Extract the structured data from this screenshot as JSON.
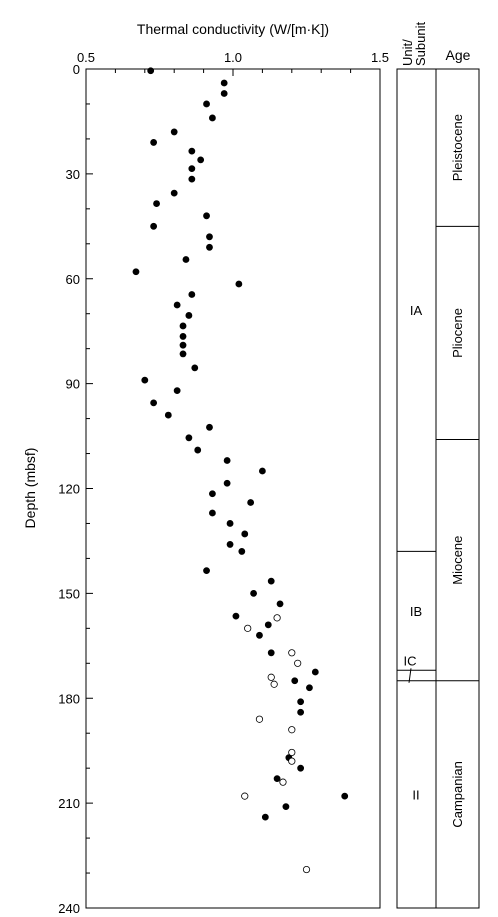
{
  "chart_data": {
    "type": "scatter",
    "xlabel": "Thermal conductivity (W/[m·K])",
    "ylabel": "Depth (mbsf)",
    "xlim": [
      0.5,
      1.5
    ],
    "ylim": [
      0,
      240
    ],
    "y_inverted": true,
    "x_ticks": [
      "0.5",
      "1.0",
      "1.5"
    ],
    "y_ticks": [
      "0",
      "30",
      "60",
      "90",
      "120",
      "150",
      "180",
      "210",
      "240"
    ],
    "grid": false,
    "legend": "none",
    "series": [
      {
        "marker": "filled-circle",
        "points": [
          [
            0.72,
            0.5
          ],
          [
            0.97,
            4
          ],
          [
            0.97,
            7
          ],
          [
            0.91,
            10
          ],
          [
            0.93,
            14
          ],
          [
            0.8,
            18
          ],
          [
            0.73,
            21
          ],
          [
            0.86,
            23.5
          ],
          [
            0.89,
            26
          ],
          [
            0.86,
            28.5
          ],
          [
            0.86,
            31.5
          ],
          [
            0.8,
            35.5
          ],
          [
            0.74,
            38.5
          ],
          [
            0.91,
            42
          ],
          [
            0.92,
            48
          ],
          [
            0.73,
            45
          ],
          [
            0.92,
            51
          ],
          [
            0.84,
            54.5
          ],
          [
            0.67,
            58
          ],
          [
            1.02,
            61.5
          ],
          [
            0.86,
            64.5
          ],
          [
            0.81,
            67.5
          ],
          [
            0.85,
            70.5
          ],
          [
            0.83,
            73.5
          ],
          [
            0.83,
            76.5
          ],
          [
            0.83,
            79
          ],
          [
            0.83,
            81.5
          ],
          [
            0.87,
            85.5
          ],
          [
            0.7,
            89
          ],
          [
            0.81,
            92
          ],
          [
            0.73,
            95.5
          ],
          [
            0.78,
            99
          ],
          [
            0.92,
            102.5
          ],
          [
            0.85,
            105.5
          ],
          [
            0.88,
            109
          ],
          [
            0.98,
            112
          ],
          [
            1.1,
            115
          ],
          [
            0.98,
            118.5
          ],
          [
            0.93,
            121.5
          ],
          [
            1.06,
            124
          ],
          [
            0.93,
            127
          ],
          [
            0.99,
            130
          ],
          [
            1.04,
            133
          ],
          [
            0.99,
            136
          ],
          [
            1.03,
            138
          ],
          [
            0.91,
            143.5
          ],
          [
            1.13,
            146.5
          ],
          [
            1.07,
            150
          ],
          [
            1.16,
            153
          ],
          [
            1.01,
            156.5
          ],
          [
            1.12,
            159
          ],
          [
            1.09,
            162
          ],
          [
            1.13,
            167
          ],
          [
            1.28,
            172.5
          ],
          [
            1.21,
            175
          ],
          [
            1.26,
            177
          ],
          [
            1.23,
            181
          ],
          [
            1.23,
            184
          ],
          [
            1.19,
            197
          ],
          [
            1.23,
            200
          ],
          [
            1.15,
            203
          ],
          [
            1.38,
            208
          ],
          [
            1.18,
            211
          ],
          [
            1.11,
            214
          ]
        ]
      },
      {
        "marker": "open-circle",
        "points": [
          [
            1.15,
            157
          ],
          [
            1.05,
            160
          ],
          [
            1.2,
            167
          ],
          [
            1.22,
            170
          ],
          [
            1.13,
            174
          ],
          [
            1.14,
            176
          ],
          [
            1.09,
            186
          ],
          [
            1.2,
            189
          ],
          [
            1.2,
            195.5
          ],
          [
            1.2,
            198
          ],
          [
            1.17,
            204
          ],
          [
            1.04,
            208
          ],
          [
            1.25,
            229
          ]
        ]
      }
    ],
    "units_column": {
      "header": "Unit/ Subunit",
      "intervals": [
        {
          "label": "IA",
          "top": 0,
          "bottom": 138
        },
        {
          "label": "IB",
          "top": 138,
          "bottom": 172
        },
        {
          "label": "IC",
          "top": 172,
          "bottom": 175
        },
        {
          "label": "II",
          "top": 175,
          "bottom": 240
        }
      ]
    },
    "age_column": {
      "header": "Age",
      "intervals": [
        {
          "label": "Pleistocene",
          "top": 0,
          "bottom": 45
        },
        {
          "label": "Pliocene",
          "top": 45,
          "bottom": 106
        },
        {
          "label": "Miocene",
          "top": 106,
          "bottom": 175
        },
        {
          "label": "Campanian",
          "top": 175,
          "bottom": 240
        }
      ]
    }
  }
}
